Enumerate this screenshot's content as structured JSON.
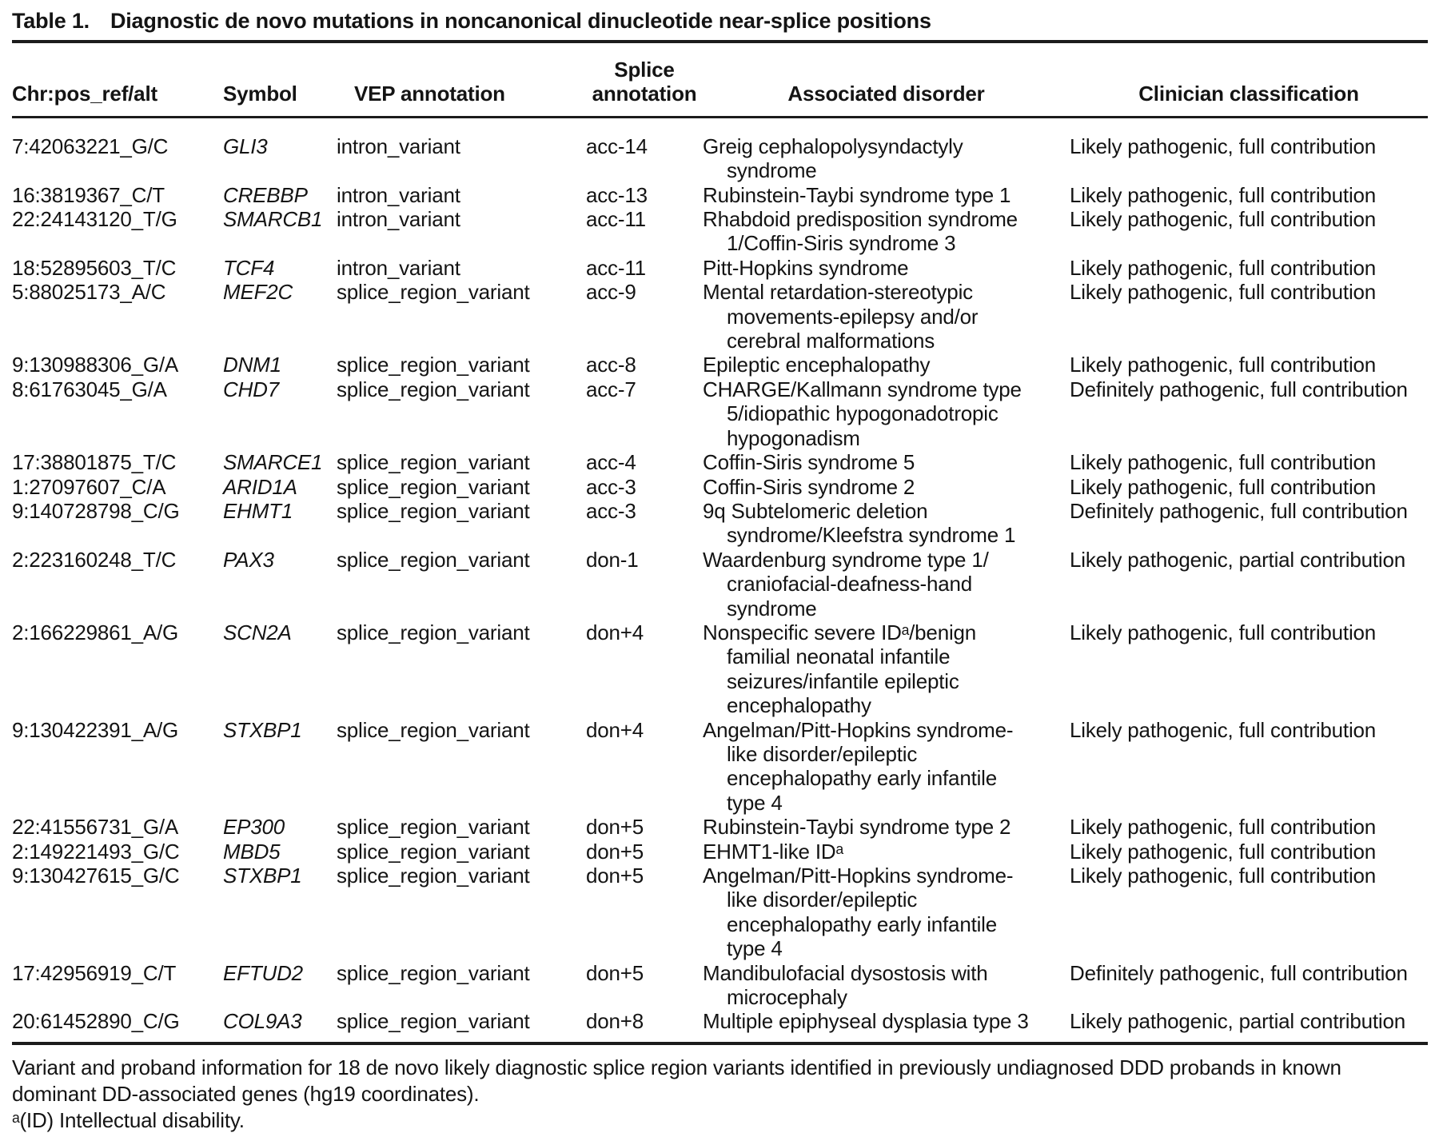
{
  "title": {
    "label": "Table 1.",
    "text": "Diagnostic de novo mutations in noncanonical dinucleotide near-splice positions"
  },
  "table": {
    "columns": [
      "Chr:pos_ref/alt",
      "Symbol",
      "VEP annotation",
      "Splice\nannotation",
      "Associated disorder",
      "Clinician classification"
    ],
    "rows": [
      {
        "variant": "7:42063221_G/C",
        "symbol": "GLI3",
        "vep": "intron_variant",
        "splice": "acc-14",
        "disorder": "Greig cephalopolysyndactyly\nsyndrome",
        "classification": "Likely pathogenic, full contribution"
      },
      {
        "variant": "16:3819367_C/T",
        "symbol": "CREBBP",
        "vep": "intron_variant",
        "splice": "acc-13",
        "disorder": "Rubinstein-Taybi syndrome type 1",
        "classification": "Likely pathogenic, full contribution"
      },
      {
        "variant": "22:24143120_T/G",
        "symbol": "SMARCB1",
        "vep": "intron_variant",
        "splice": "acc-11",
        "disorder": "Rhabdoid predisposition syndrome\n1/Coffin-Siris syndrome 3",
        "classification": "Likely pathogenic, full contribution"
      },
      {
        "variant": "18:52895603_T/C",
        "symbol": "TCF4",
        "vep": "intron_variant",
        "splice": "acc-11",
        "disorder": "Pitt-Hopkins syndrome",
        "classification": "Likely pathogenic, full contribution"
      },
      {
        "variant": "5:88025173_A/C",
        "symbol": "MEF2C",
        "vep": "splice_region_variant",
        "splice": "acc-9",
        "disorder": "Mental retardation-stereotypic\nmovements-epilepsy and/or\ncerebral malformations",
        "classification": "Likely pathogenic, full contribution"
      },
      {
        "variant": "9:130988306_G/A",
        "symbol": "DNM1",
        "vep": "splice_region_variant",
        "splice": "acc-8",
        "disorder": "Epileptic encephalopathy",
        "classification": "Likely pathogenic, full contribution"
      },
      {
        "variant": "8:61763045_G/A",
        "symbol": "CHD7",
        "vep": "splice_region_variant",
        "splice": "acc-7",
        "disorder": "CHARGE/Kallmann syndrome type\n5/idiopathic hypogonadotropic\nhypogonadism",
        "classification": "Definitely pathogenic, full contribution"
      },
      {
        "variant": "17:38801875_T/C",
        "symbol": "SMARCE1",
        "vep": "splice_region_variant",
        "splice": "acc-4",
        "disorder": "Coffin-Siris syndrome 5",
        "classification": "Likely pathogenic, full contribution"
      },
      {
        "variant": "1:27097607_C/A",
        "symbol": "ARID1A",
        "vep": "splice_region_variant",
        "splice": "acc-3",
        "disorder": "Coffin-Siris syndrome 2",
        "classification": "Likely pathogenic, full contribution"
      },
      {
        "variant": "9:140728798_C/G",
        "symbol": "EHMT1",
        "vep": "splice_region_variant",
        "splice": "acc-3",
        "disorder": "9q Subtelomeric deletion\nsyndrome/Kleefstra syndrome 1",
        "classification": "Definitely pathogenic, full contribution"
      },
      {
        "variant": "2:223160248_T/C",
        "symbol": "PAX3",
        "vep": "splice_region_variant",
        "splice": "don-1",
        "disorder": "Waardenburg syndrome type 1/\ncraniofacial-deafness-hand\nsyndrome",
        "classification": "Likely pathogenic, partial contribution"
      },
      {
        "variant": "2:166229861_A/G",
        "symbol": "SCN2A",
        "vep": "splice_region_variant",
        "splice": "don+4",
        "disorder": "Nonspecific severe IDᵃ/benign\nfamilial neonatal infantile\nseizures/infantile epileptic\nencephalopathy",
        "classification": "Likely pathogenic, full contribution"
      },
      {
        "variant": "9:130422391_A/G",
        "symbol": "STXBP1",
        "vep": "splice_region_variant",
        "splice": "don+4",
        "disorder": "Angelman/Pitt-Hopkins syndrome-\nlike disorder/epileptic\nencephalopathy early infantile\ntype 4",
        "classification": "Likely pathogenic, full contribution"
      },
      {
        "variant": "22:41556731_G/A",
        "symbol": "EP300",
        "vep": "splice_region_variant",
        "splice": "don+5",
        "disorder": "Rubinstein-Taybi syndrome type 2",
        "classification": "Likely pathogenic, full contribution"
      },
      {
        "variant": "2:149221493_G/C",
        "symbol": "MBD5",
        "vep": "splice_region_variant",
        "splice": "don+5",
        "disorder": "EHMT1-like IDᵃ",
        "classification": "Likely pathogenic, full contribution"
      },
      {
        "variant": "9:130427615_G/C",
        "symbol": "STXBP1",
        "vep": "splice_region_variant",
        "splice": "don+5",
        "disorder": "Angelman/Pitt-Hopkins syndrome-\nlike disorder/epileptic\nencephalopathy early infantile\ntype 4",
        "classification": "Likely pathogenic, full contribution"
      },
      {
        "variant": "17:42956919_C/T",
        "symbol": "EFTUD2",
        "vep": "splice_region_variant",
        "splice": "don+5",
        "disorder": "Mandibulofacial dysostosis with\nmicrocephaly",
        "classification": "Definitely pathogenic, full contribution"
      },
      {
        "variant": "20:61452890_C/G",
        "symbol": "COL9A3",
        "vep": "splice_region_variant",
        "splice": "don+8",
        "disorder": "Multiple epiphyseal dysplasia type 3",
        "classification": "Likely pathogenic, partial contribution"
      }
    ]
  },
  "notes": {
    "caption": "Variant and proband information for 18 de novo likely diagnostic splice region variants identified in previously undiagnosed DDD probands in known dominant DD-associated genes (hg19 coordinates).",
    "footnote_a": "ᵃ(ID) Intellectual disability."
  }
}
